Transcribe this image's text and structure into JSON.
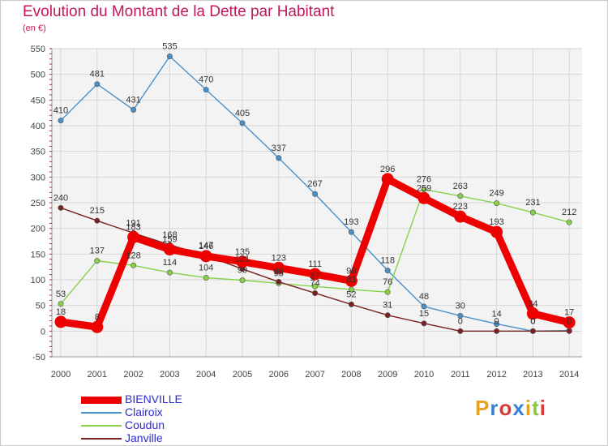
{
  "chart_data": {
    "type": "line",
    "title": "Evolution du Montant de la Dette par Habitant",
    "subtitle": "(en €)",
    "xlabel": "",
    "ylabel": "",
    "x": [
      "2000",
      "2001",
      "2002",
      "2003",
      "2004",
      "2005",
      "2006",
      "2007",
      "2008",
      "2009",
      "2010",
      "2011",
      "2012",
      "2013",
      "2014"
    ],
    "ylim": [
      -50,
      550
    ],
    "yticks": [
      -50,
      0,
      50,
      100,
      150,
      200,
      250,
      300,
      350,
      400,
      450,
      500,
      550
    ],
    "grid": true,
    "legend_position": "bottom-left",
    "series": [
      {
        "name": "BIENVILLE",
        "color": "#ee0000",
        "values": [
          18,
          8,
          183,
          159,
          146,
          135,
          123,
          111,
          98,
          296,
          259,
          223,
          193,
          34,
          17
        ]
      },
      {
        "name": "Clairoix",
        "color": "#4a90c8",
        "values": [
          410,
          481,
          431,
          535,
          470,
          405,
          337,
          267,
          193,
          118,
          48,
          30,
          14,
          0,
          1
        ]
      },
      {
        "name": "Coudun",
        "color": "#86d04a",
        "values": [
          53,
          137,
          128,
          114,
          104,
          99,
          93,
          87,
          81,
          76,
          276,
          263,
          249,
          231,
          212
        ]
      },
      {
        "name": "Janville",
        "color": "#7a2020",
        "values": [
          240,
          215,
          191,
          168,
          147,
          121,
          96,
          74,
          52,
          31,
          15,
          0,
          0,
          0,
          0
        ]
      }
    ],
    "value_labels": {
      "BIENVILLE": [
        "18",
        "8",
        "183",
        "159",
        "146",
        "135",
        "123",
        "111",
        "98",
        "296",
        "259",
        "223",
        "193",
        "34",
        "17"
      ],
      "Clairoix": [
        "410",
        "481",
        "431",
        "535",
        "470",
        "405",
        "337",
        "267",
        "193",
        "118",
        "48",
        "30",
        "14",
        "0",
        ""
      ],
      "Coudun": [
        "53",
        "137",
        "128",
        "114",
        "104",
        "99",
        "93",
        "87",
        "81",
        "76",
        "276",
        "263",
        "249",
        "231",
        "212"
      ],
      "Janville": [
        "240",
        "215",
        "191",
        "168",
        "147",
        "121",
        "96",
        "74",
        "52",
        "31",
        "15",
        "0",
        "0",
        "0",
        "0"
      ]
    }
  },
  "legend": {
    "items": [
      {
        "label": "BIENVILLE",
        "color": "#ee0000"
      },
      {
        "label": "Clairoix",
        "color": "#4a90c8"
      },
      {
        "label": "Coudun",
        "color": "#86d04a"
      },
      {
        "label": "Janville",
        "color": "#7a2020"
      }
    ]
  },
  "branding": {
    "logo_text": "Proxiti",
    "logo_colors": [
      "#e8a020",
      "#3a7fd8",
      "#d83a3a",
      "#3a7fd8",
      "#e8a020",
      "#8cc63f",
      "#d83a3a"
    ]
  }
}
